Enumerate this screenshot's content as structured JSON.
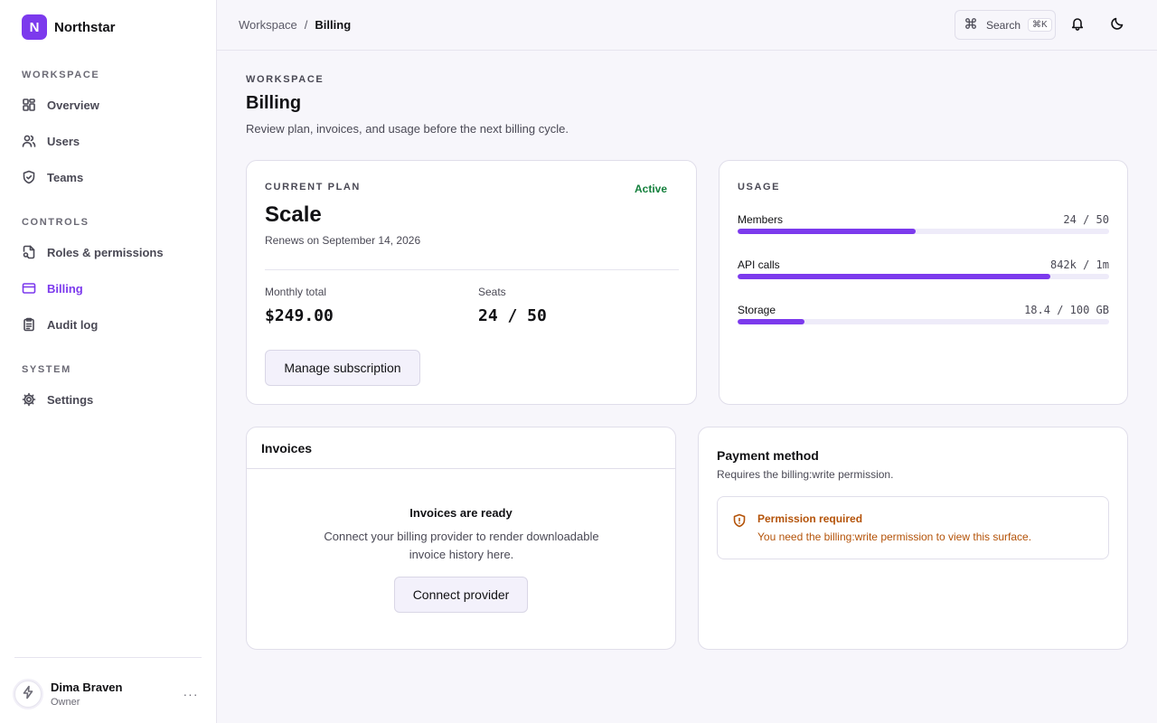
{
  "brand": {
    "logo_letter": "N",
    "name": "Northstar",
    "accent": "#7c3aed"
  },
  "sidebar": {
    "sections": [
      {
        "label": "WORKSPACE"
      },
      {
        "label": "CONTROLS"
      },
      {
        "label": "SYSTEM"
      }
    ],
    "items": [
      {
        "label": "Overview",
        "icon": "grid-icon"
      },
      {
        "label": "Users",
        "icon": "users-icon"
      },
      {
        "label": "Teams",
        "icon": "shield-icon"
      },
      {
        "label": "Roles & permissions",
        "icon": "file-key-icon"
      },
      {
        "label": "Billing",
        "icon": "credit-card-icon",
        "active": true
      },
      {
        "label": "Audit log",
        "icon": "clipboard-icon"
      },
      {
        "label": "Settings",
        "icon": "gear-icon"
      }
    ],
    "user": {
      "name": "Dima Braven",
      "role": "Owner",
      "more": "···"
    }
  },
  "topbar": {
    "breadcrumb": [
      "Workspace",
      "Billing"
    ],
    "breadcrumb_sep": "/",
    "search_label": "Search",
    "search_shortcut": "⌘K"
  },
  "page": {
    "eyebrow": "WORKSPACE",
    "title": "Billing",
    "subtitle": "Review plan, invoices, and usage before the next billing cycle."
  },
  "plan": {
    "eyebrow": "CURRENT PLAN",
    "name": "Scale",
    "renews": "Renews on September 14, 2026",
    "status": "Active",
    "status_color": "#15803d",
    "monthly_label": "Monthly total",
    "monthly_value": "$249.00",
    "seats_label": "Seats",
    "seats_value": "24 / 50",
    "button": "Manage subscription"
  },
  "usage": {
    "eyebrow": "USAGE",
    "rows": [
      {
        "label": "Members",
        "value": "24 / 50",
        "fraction": 0.48
      },
      {
        "label": "API calls",
        "value": "842k / 1m",
        "fraction": 0.842
      },
      {
        "label": "Storage",
        "value": "18.4 / 100 GB",
        "fraction": 0.18
      }
    ]
  },
  "invoices": {
    "title": "Invoices",
    "empty_title": "Invoices are ready",
    "empty_body": "Connect your billing provider to render downloadable invoice history here.",
    "button": "Connect provider"
  },
  "payment": {
    "title": "Payment method",
    "subtitle": "Requires the billing:write permission.",
    "alert_title": "Permission required",
    "alert_body": "You need the billing:write permission to view this surface.",
    "alert_color": "#b45309"
  }
}
